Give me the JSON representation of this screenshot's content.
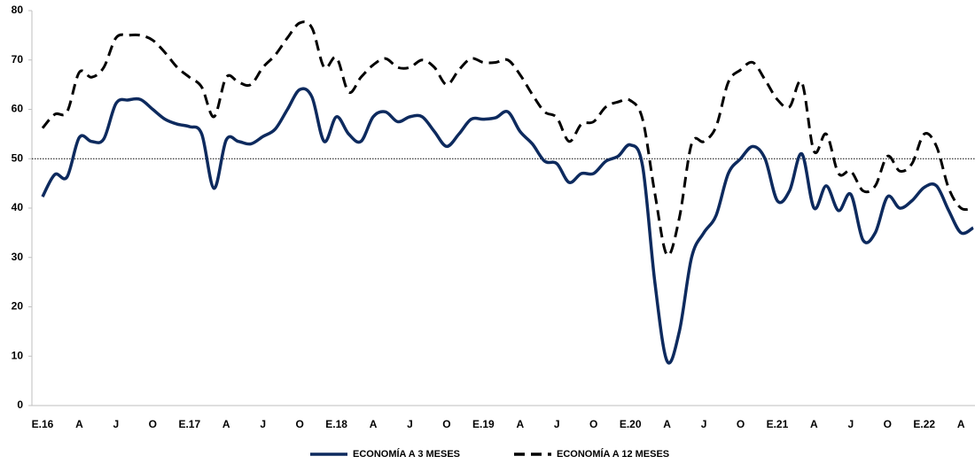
{
  "chart_data": {
    "type": "line",
    "categories": [
      "E.16",
      null,
      null,
      "A",
      null,
      null,
      "J",
      null,
      null,
      "O",
      null,
      null,
      "E.17",
      null,
      null,
      "A",
      null,
      null,
      "J",
      null,
      null,
      "O",
      null,
      null,
      "E.18",
      null,
      null,
      "A",
      null,
      null,
      "J",
      null,
      null,
      "O",
      null,
      null,
      "E.19",
      null,
      null,
      "A",
      null,
      null,
      "J",
      null,
      null,
      "O",
      null,
      null,
      "E.20",
      null,
      null,
      "A",
      null,
      null,
      "J",
      null,
      null,
      "O",
      null,
      null,
      "E.21",
      null,
      null,
      "A",
      null,
      null,
      "J",
      null,
      null,
      "O",
      null,
      null,
      "E.22",
      null,
      null,
      "A",
      null
    ],
    "series": [
      {
        "name": "ECONOMÍA A 3 MESES",
        "color": "#0d2a5e",
        "dash": false,
        "values": [
          42.3,
          46.8,
          46.3,
          54.3,
          53.5,
          54,
          61.2,
          61.9,
          62,
          60,
          58,
          57,
          56.5,
          55,
          44,
          53.8,
          53.5,
          53,
          54.5,
          56,
          60,
          64,
          62.5,
          53.5,
          58.5,
          55,
          53.5,
          58.5,
          59.5,
          57.5,
          58.5,
          58.5,
          55.5,
          52.5,
          55,
          58,
          58,
          58.3,
          59.5,
          55.5,
          53,
          49.5,
          49,
          45.2,
          47,
          47,
          49.5,
          50.5,
          52.8,
          48.5,
          25,
          9,
          15,
          30,
          35,
          38.5,
          47,
          50,
          52.5,
          50,
          41.5,
          43.5,
          51,
          40,
          44.5,
          39.5,
          42.8,
          33.5,
          35,
          42.3,
          40,
          41.5,
          44.2,
          44.5,
          39.5,
          35,
          36
        ]
      },
      {
        "name": "ECONOMÍA A 12 MESES",
        "color": "#000000",
        "dash": true,
        "values": [
          56.2,
          59,
          59.5,
          67.5,
          66.5,
          68.5,
          74.5,
          75,
          75,
          74,
          71.5,
          68.5,
          66.5,
          64.5,
          58.5,
          66.5,
          65.5,
          65,
          68.5,
          71,
          74.5,
          77.5,
          76.5,
          68.5,
          70.5,
          63.5,
          66.5,
          69,
          70.3,
          68.5,
          68.5,
          70,
          68.5,
          65,
          68,
          70.3,
          69.5,
          69.5,
          70,
          67,
          63,
          59.5,
          58.3,
          53.5,
          57,
          57.5,
          60.5,
          61.5,
          61.8,
          58,
          43,
          30.5,
          38,
          53,
          53.5,
          56.5,
          65.5,
          68,
          69.5,
          66,
          62,
          60.5,
          65.5,
          51.5,
          55,
          47,
          47.5,
          43.5,
          44.5,
          50.5,
          47.5,
          49,
          55,
          52.5,
          44,
          40,
          40
        ]
      }
    ],
    "ylim": [
      0,
      80
    ],
    "yticks": [
      0,
      10,
      20,
      30,
      40,
      50,
      60,
      70,
      80
    ],
    "reference_line": 50
  }
}
